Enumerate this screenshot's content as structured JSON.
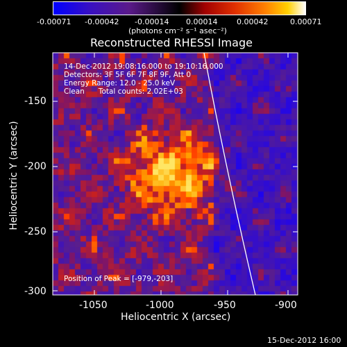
{
  "colorbar": {
    "tick_labels": [
      "-0.00071",
      "-0.00042",
      "-0.00014",
      "0.00014",
      "0.00042",
      "0.00071"
    ],
    "units": "(photons cm⁻² s⁻¹ asec⁻²)",
    "colors": [
      "#0000ff",
      "#5a1a9a",
      "#000000",
      "#c00000",
      "#ff6000",
      "#ffd000",
      "#ffffff"
    ]
  },
  "title": "Reconstructed RHESSI Image",
  "info": {
    "line1": "14-Dec-2012 19:08:16.000 to 19:10:16.000",
    "line2": "Detectors: 3F 5F 6F 7F 8F 9F, Att 0",
    "line3": "Energy Range: 12.0 - 25.0 keV",
    "line4": "Clean      Total counts: 2.02E+03"
  },
  "peak": "Position of Peak = [-979,-203]",
  "x_axis": {
    "label": "Heliocentric X (arcsec)",
    "ticks": [
      "-1050",
      "-1000",
      "-950",
      "-900"
    ]
  },
  "y_axis": {
    "label": "Heliocentric Y (arcsec)",
    "ticks": [
      "-150",
      "-200",
      "-250",
      "-300"
    ]
  },
  "timestamp": "15-Dec-2012 16:00"
}
